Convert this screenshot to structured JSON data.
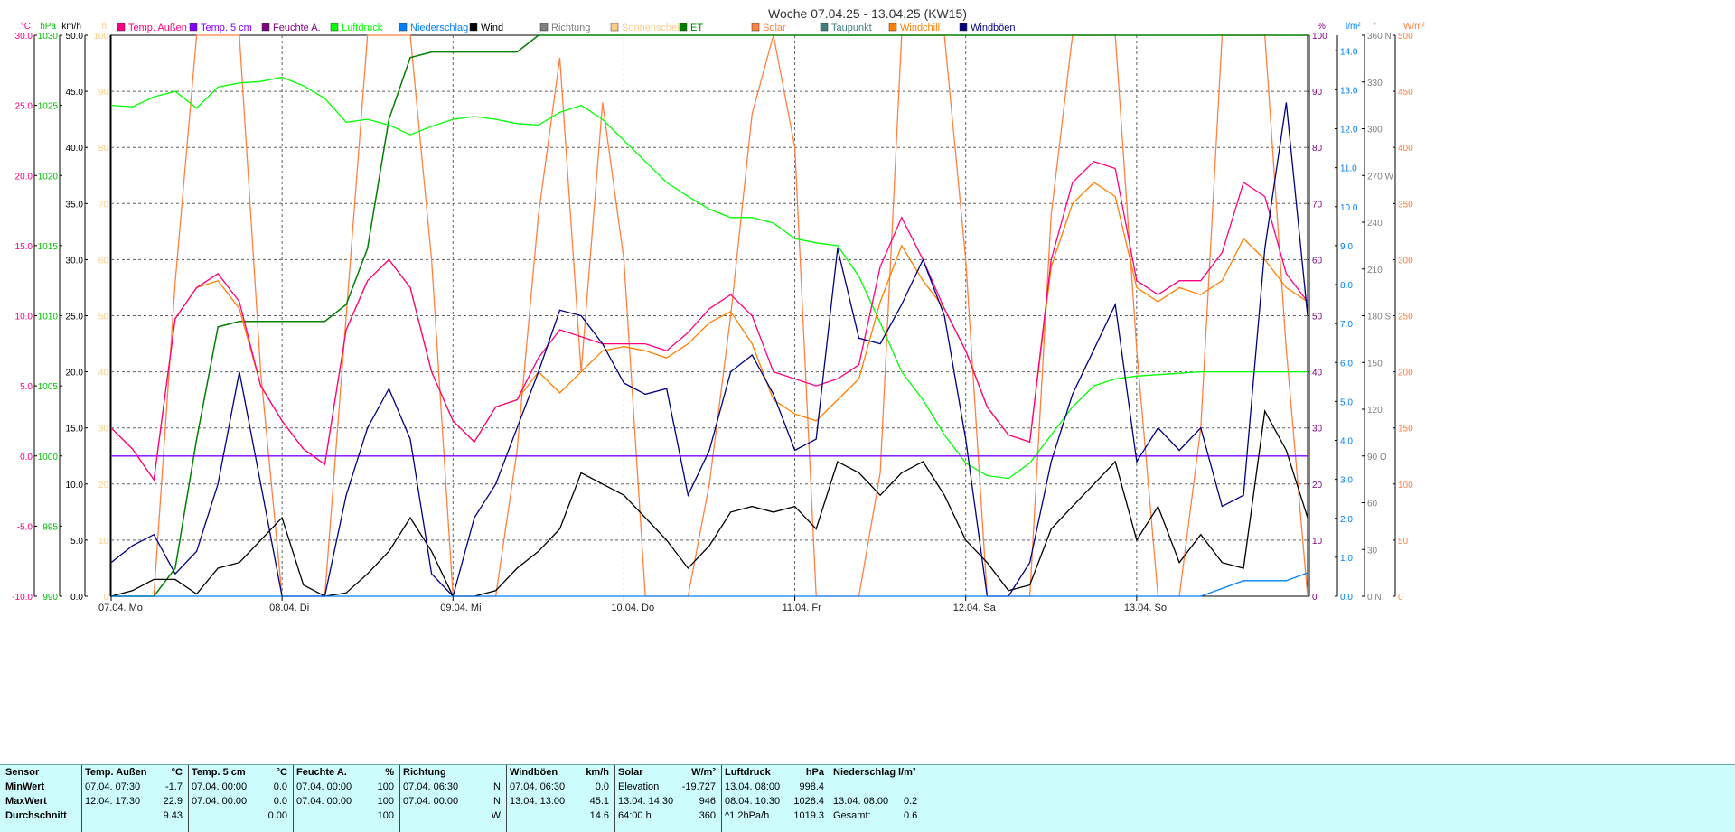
{
  "title": "Woche 07.04.25 - 13.04.25 (KW15)",
  "chart_data": {
    "type": "line",
    "title": "Woche 07.04.25 - 13.04.25 (KW15)",
    "x": [
      0,
      3,
      6,
      9,
      12,
      15,
      18,
      21,
      24,
      27,
      30,
      33,
      36,
      39,
      42,
      45,
      48,
      51,
      54,
      57,
      60,
      63,
      66,
      69,
      72,
      75,
      78,
      81,
      84,
      87,
      90,
      93,
      96,
      99,
      102,
      105,
      108,
      111,
      114,
      117,
      120,
      123,
      126,
      129,
      132,
      135,
      138,
      141,
      144,
      147,
      150,
      153,
      156,
      159,
      162,
      165,
      168
    ],
    "xunit": "hours since 07.04.25 00:00",
    "xticks": [
      {
        "h": 0,
        "label": "07.04.  Mo"
      },
      {
        "h": 24,
        "label": "08.04.  Di"
      },
      {
        "h": 48,
        "label": "09.04.  Mi"
      },
      {
        "h": 72,
        "label": "10.04.  Do"
      },
      {
        "h": 96,
        "label": "11.04.  Fr"
      },
      {
        "h": 120,
        "label": "12.04.  Sa"
      },
      {
        "h": 144,
        "label": "13.04.  So"
      }
    ],
    "xlim": [
      0,
      168
    ],
    "grid": true,
    "legend_position": "top",
    "legend": [
      {
        "label": "Temp. Außen",
        "color": "#ff0080"
      },
      {
        "label": "Temp. 5 cm",
        "color": "#8000ff"
      },
      {
        "label": "Feuchte A.",
        "color": "#800080"
      },
      {
        "label": "Luftdruck",
        "color": "#00ff00"
      },
      {
        "label": "Niederschlag",
        "color": "#0080ff"
      },
      {
        "label": "Wind",
        "color": "#000000"
      },
      {
        "label": "Richtung",
        "color": "#808080"
      },
      {
        "label": "Sonnenschein",
        "color": "#ffcc88"
      },
      {
        "label": "ET",
        "color": "#008000"
      },
      {
        "label": "Solar",
        "color": "#ff8040"
      },
      {
        "label": "Taupunkt",
        "color": "#408080"
      },
      {
        "label": "Windchill",
        "color": "#ff8000"
      },
      {
        "label": "Windböen",
        "color": "#000080"
      }
    ],
    "axes": [
      {
        "id": "temp",
        "side": "left",
        "unit": "°C",
        "color": "#ff0080",
        "min": -10,
        "max": 30,
        "ticks": [
          "30.0",
          "25.0",
          "20.0",
          "15.0",
          "10.0",
          "5.0",
          "0.0",
          "-5.0",
          "-10.0"
        ]
      },
      {
        "id": "pres",
        "side": "left",
        "unit": "hPa",
        "color": "#00c000",
        "min": 990,
        "max": 1030,
        "ticks": [
          "1030",
          "1025",
          "1020",
          "1015",
          "1010",
          "1005",
          "1000",
          "995",
          "990"
        ]
      },
      {
        "id": "wind",
        "side": "left",
        "unit": "km/h",
        "color": "#000000",
        "min": 0,
        "max": 50,
        "ticks": [
          "50.0",
          "45.0",
          "40.0",
          "35.0",
          "30.0",
          "25.0",
          "20.0",
          "15.0",
          "10.0",
          "5.0",
          "0.0"
        ]
      },
      {
        "id": "sun",
        "side": "left",
        "unit": "h",
        "color": "#ffcc88",
        "min": 0,
        "max": 100,
        "ticks": [
          "100",
          "90",
          "80",
          "70",
          "60",
          "50",
          "40",
          "30",
          "20",
          "10",
          "0"
        ]
      },
      {
        "id": "hum",
        "side": "right",
        "unit": "%",
        "color": "#800080",
        "min": 0,
        "max": 100,
        "ticks": [
          "100",
          "90",
          "80",
          "70",
          "60",
          "50",
          "40",
          "30",
          "20",
          "10",
          "0"
        ]
      },
      {
        "id": "rain",
        "side": "right",
        "unit": "l/m²",
        "color": "#0080ff",
        "min": 0,
        "max": 14.4,
        "ticks": [
          "14.0",
          "13.0",
          "12.0",
          "11.0",
          "10.0",
          "9.0",
          "8.0",
          "7.0",
          "6.0",
          "5.0",
          "4.0",
          "3.0",
          "2.0",
          "1.0",
          "0.0"
        ]
      },
      {
        "id": "dir",
        "side": "right",
        "unit": "°",
        "color": "#808080",
        "min": 0,
        "max": 360,
        "ticks": [
          "360 N",
          "330",
          "300",
          "270 W",
          "240",
          "210",
          "180 S",
          "150",
          "120",
          "90 O",
          "60",
          "30",
          "0 N"
        ]
      },
      {
        "id": "solar",
        "side": "right",
        "unit": "W/m²",
        "color": "#ff8040",
        "min": 0,
        "max": 500,
        "ticks": [
          "500",
          "450",
          "400",
          "350",
          "300",
          "250",
          "200",
          "150",
          "100",
          "50",
          "0"
        ]
      }
    ],
    "series": [
      {
        "name": "Temp. Außen",
        "axis": "temp",
        "color": "#ff0080",
        "values": [
          2.0,
          0.5,
          -1.7,
          9.8,
          12.0,
          13.0,
          11.0,
          5.0,
          2.5,
          0.5,
          -0.6,
          9.0,
          12.5,
          14.0,
          12.0,
          6.0,
          2.5,
          1.0,
          3.5,
          4.0,
          7.0,
          9.0,
          8.5,
          8.0,
          8.0,
          8.0,
          7.5,
          8.8,
          10.5,
          11.5,
          10.0,
          6.0,
          5.5,
          5.0,
          5.5,
          6.5,
          13.5,
          17.0,
          14.0,
          10.5,
          7.5,
          3.5,
          1.5,
          1.0,
          14.0,
          19.5,
          21.0,
          20.5,
          12.5,
          11.5,
          12.5,
          12.5,
          14.5,
          19.5,
          18.5,
          13.0,
          11.0
        ]
      },
      {
        "name": "Windchill",
        "axis": "temp",
        "color": "#ff8000",
        "values": [
          2.0,
          0.5,
          -1.7,
          9.8,
          12.0,
          12.5,
          10.5,
          5.0,
          2.5,
          0.5,
          -0.6,
          9.0,
          12.5,
          14.0,
          12.0,
          6.0,
          2.5,
          1.0,
          3.5,
          4.0,
          6.0,
          4.5,
          6.0,
          7.5,
          7.8,
          7.5,
          7.0,
          8.0,
          9.5,
          10.3,
          8.0,
          4.0,
          3.0,
          2.5,
          4.0,
          5.5,
          11.0,
          15.0,
          12.5,
          10.5,
          7.5,
          3.5,
          1.5,
          1.0,
          13.5,
          18.0,
          19.5,
          18.5,
          12.0,
          11.0,
          12.0,
          11.5,
          12.5,
          15.5,
          14.0,
          12.0,
          11.0
        ]
      },
      {
        "name": "Temp. 5 cm",
        "axis": "temp",
        "color": "#8000ff",
        "values": [
          0,
          0,
          0,
          0,
          0,
          0,
          0,
          0,
          0,
          0,
          0,
          0,
          0,
          0,
          0,
          0,
          0,
          0,
          0,
          0,
          0,
          0,
          0,
          0,
          0,
          0,
          0,
          0,
          0,
          0,
          0,
          0,
          0,
          0,
          0,
          0,
          0,
          0,
          0,
          0,
          0,
          0,
          0,
          0,
          0,
          0,
          0,
          0,
          0,
          0,
          0,
          0,
          0,
          0,
          0,
          0,
          0
        ]
      },
      {
        "name": "Luftdruck",
        "axis": "pres",
        "color": "#00ff00",
        "values": [
          1025.0,
          1024.9,
          1025.6,
          1026.0,
          1024.8,
          1026.3,
          1026.6,
          1026.7,
          1027.0,
          1026.4,
          1025.5,
          1023.8,
          1024.0,
          1023.6,
          1022.9,
          1023.5,
          1024.0,
          1024.2,
          1024.0,
          1023.7,
          1023.6,
          1024.5,
          1025.0,
          1024.0,
          1022.5,
          1021.0,
          1019.5,
          1018.5,
          1017.6,
          1017.0,
          1017.0,
          1016.6,
          1015.5,
          1015.2,
          1015.0,
          1012.8,
          1009.5,
          1006.0,
          1004.0,
          1001.5,
          999.5,
          998.6,
          998.4,
          999.5,
          1001.5,
          1003.5,
          1005.0,
          1005.5,
          1005.7,
          1005.8,
          1005.9,
          1006.0,
          1006.0,
          1006.0,
          1006.0,
          1006.0,
          1006.0
        ]
      },
      {
        "name": "ET",
        "axis": "sun",
        "color": "#008000",
        "values": [
          0,
          0,
          0,
          5,
          28,
          48,
          49,
          49,
          49,
          49,
          49,
          52,
          62,
          85,
          96,
          97,
          97,
          97,
          97,
          97,
          100,
          100,
          100,
          100,
          100,
          100,
          100,
          100,
          100,
          100,
          100,
          100,
          100,
          100,
          100,
          100,
          100,
          100,
          100,
          100,
          100,
          100,
          100,
          100,
          100,
          100,
          100,
          100,
          100,
          100,
          100,
          100,
          100,
          100,
          100,
          100,
          100
        ]
      },
      {
        "name": "Wind",
        "axis": "wind",
        "color": "#000000",
        "values": [
          0,
          0.5,
          1.5,
          1.5,
          0.2,
          2.5,
          3.0,
          5.0,
          7.0,
          1.0,
          0,
          0.3,
          2.0,
          4.0,
          7.0,
          4.0,
          0,
          0,
          0.5,
          2.5,
          4.0,
          6.0,
          11.0,
          10.0,
          9.0,
          7.0,
          5.0,
          2.5,
          4.5,
          7.5,
          8.0,
          7.5,
          8.0,
          6.0,
          12.0,
          11.0,
          9.0,
          11.0,
          12.0,
          9.0,
          5.0,
          3.0,
          0.5,
          1.0,
          6.0,
          8.0,
          10.0,
          12.0,
          5.0,
          8.0,
          3.0,
          5.5,
          3.0,
          2.5,
          16.5,
          13.0,
          7.0
        ]
      },
      {
        "name": "Windböen",
        "axis": "wind",
        "color": "#000080",
        "values": [
          3.0,
          4.5,
          5.5,
          2.0,
          4.0,
          10.0,
          20.0,
          10.0,
          0,
          0,
          0,
          9.0,
          15.0,
          18.5,
          14.0,
          2.0,
          0,
          7.0,
          10.0,
          15.0,
          20.0,
          25.5,
          25.0,
          22.5,
          19.0,
          18.0,
          18.5,
          9.0,
          13.0,
          20.0,
          21.5,
          18.0,
          13.0,
          14.0,
          31.0,
          23.0,
          22.5,
          26.0,
          30.0,
          25.0,
          14.0,
          0,
          0,
          3.0,
          12.0,
          18.0,
          22.0,
          26.0,
          12.0,
          15.0,
          13.0,
          15.0,
          8.0,
          9.0,
          31.0,
          44.0,
          25.0
        ]
      },
      {
        "name": "Solar",
        "axis": "solar",
        "color": "#ff8040",
        "values": [
          0,
          0,
          0,
          280,
          500,
          500,
          500,
          200,
          0,
          0,
          0,
          250,
          500,
          500,
          500,
          300,
          0,
          0,
          0,
          130,
          340,
          480,
          200,
          440,
          300,
          0,
          0,
          0,
          100,
          250,
          430,
          500,
          400,
          0,
          0,
          0,
          110,
          500,
          500,
          500,
          300,
          0,
          0,
          0,
          340,
          500,
          500,
          500,
          220,
          0,
          0,
          150,
          500,
          500,
          500,
          220,
          0
        ]
      },
      {
        "name": "Niederschlag",
        "axis": "rain",
        "color": "#0080ff",
        "values": [
          0,
          0,
          0,
          0,
          0,
          0,
          0,
          0,
          0,
          0,
          0,
          0,
          0,
          0,
          0,
          0,
          0,
          0,
          0,
          0,
          0,
          0,
          0,
          0,
          0,
          0,
          0,
          0,
          0,
          0,
          0,
          0,
          0,
          0,
          0,
          0,
          0,
          0,
          0,
          0,
          0,
          0,
          0,
          0,
          0,
          0,
          0,
          0,
          0,
          0,
          0,
          0,
          0.2,
          0.4,
          0.4,
          0.4,
          0.6
        ]
      }
    ]
  },
  "stats": {
    "sensor": {
      "label": "Sensor",
      "min": "MinWert",
      "max": "MaxWert",
      "avg": "Durchschnitt"
    },
    "temp_aussen": {
      "label": "Temp. Außen",
      "unit": "°C",
      "min_date": "07.04.  07:30",
      "min_val": "-1.7",
      "max_date": "12.04.  17:30",
      "max_val": "22.9",
      "avg": "9.43"
    },
    "temp_5cm": {
      "label": "Temp. 5 cm",
      "unit": "°C",
      "min_date": "07.04.  00:00",
      "min_val": "0.0",
      "max_date": "07.04.  00:00",
      "max_val": "0.0",
      "avg": "0.00"
    },
    "feuchte": {
      "label": "Feuchte A.",
      "unit": "%",
      "min_date": "07.04.  00:00",
      "min_val": "100",
      "max_date": "07.04.  00:00",
      "max_val": "100",
      "avg": "100"
    },
    "richtung": {
      "label": "Richtung",
      "min_date": "07.04.  06:30",
      "min_dir": "N",
      "max_date": "07.04.  00:00",
      "max_dir": "N",
      "avg_dir": "W"
    },
    "windboeen": {
      "label": "Windböen",
      "unit": "km/h",
      "min_date": "07.04.  06:30",
      "min_val": "0.0",
      "max_date": "13.04.  13:00",
      "max_val": "45.1",
      "avg": "14.6"
    },
    "solar": {
      "label": "Solar",
      "unit": "W/m²",
      "row1_label": "Elevation",
      "row1_val": "-19.727",
      "row2_label": "13.04.  14:30",
      "row2_val": "946",
      "row3_label": "64:00 h",
      "row3_val": "360"
    },
    "luftdruck": {
      "label": "Luftdruck",
      "unit": "hPa",
      "min_date": "13.04.  08:00",
      "min_val": "998.4",
      "max_date": "08.04.  10:30",
      "max_val": "1028.4",
      "trend_label": "^1.2hPa/h",
      "avg": "1019.3"
    },
    "niederschlag": {
      "label": "Niederschlag",
      "unit": "l/m²",
      "max_date": "13.04.  08:00",
      "max_val": "0.2",
      "total_label": "Gesamt:",
      "total_val": "0.6"
    }
  }
}
